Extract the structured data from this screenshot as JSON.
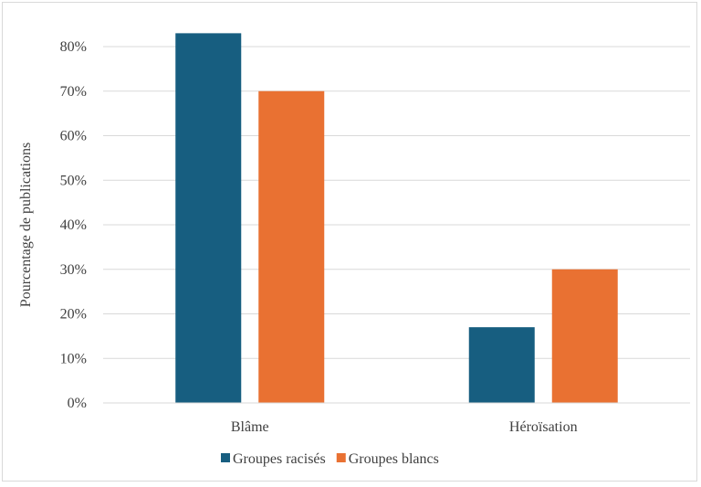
{
  "chart_data": {
    "type": "bar",
    "categories": [
      "Blâme",
      "Héroïsation"
    ],
    "series": [
      {
        "name": "Groupes racisés",
        "values": [
          83,
          17
        ],
        "color": "#175e80"
      },
      {
        "name": "Groupes blancs",
        "values": [
          70,
          30
        ],
        "color": "#e97132"
      }
    ],
    "ylabel": "Pourcentage de publications",
    "xlabel": "",
    "ylim": [
      0,
      80
    ],
    "yticks": [
      "0%",
      "10%",
      "20%",
      "30%",
      "40%",
      "50%",
      "60%",
      "70%",
      "80%"
    ],
    "grid": true,
    "legend_position": "bottom"
  }
}
